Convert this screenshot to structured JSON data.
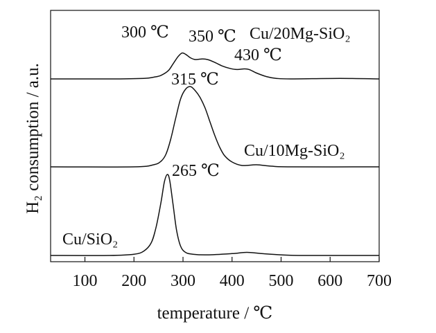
{
  "chart_data": {
    "type": "line",
    "xlabel": "temperature / ℃",
    "ylabel": "H₂ consumption / a.u.",
    "xlim": [
      30,
      700
    ],
    "xticks": [
      "100",
      "200",
      "300",
      "400",
      "500",
      "600",
      "700"
    ],
    "yaxis_ticks": false,
    "grid": false,
    "series": [
      {
        "name": "Cu/20Mg-SiO₂",
        "baseline": 3.0,
        "points": [
          [
            30,
            0
          ],
          [
            150,
            0
          ],
          [
            220,
            0.01
          ],
          [
            240,
            0.03
          ],
          [
            255,
            0.06
          ],
          [
            270,
            0.14
          ],
          [
            280,
            0.26
          ],
          [
            290,
            0.38
          ],
          [
            298,
            0.44
          ],
          [
            305,
            0.42
          ],
          [
            315,
            0.36
          ],
          [
            325,
            0.33
          ],
          [
            340,
            0.34
          ],
          [
            350,
            0.33
          ],
          [
            365,
            0.28
          ],
          [
            380,
            0.22
          ],
          [
            395,
            0.18
          ],
          [
            410,
            0.16
          ],
          [
            425,
            0.17
          ],
          [
            435,
            0.16
          ],
          [
            450,
            0.1
          ],
          [
            470,
            0.04
          ],
          [
            490,
            0.01
          ],
          [
            520,
            0
          ],
          [
            620,
            0.01
          ],
          [
            700,
            0
          ]
        ],
        "peak_labels": [
          "300 ℃",
          "350 ℃",
          "430 ℃"
        ]
      },
      {
        "name": "Cu/10Mg-SiO₂",
        "baseline": 1.5,
        "points": [
          [
            30,
            0
          ],
          [
            200,
            0
          ],
          [
            240,
            0.03
          ],
          [
            255,
            0.08
          ],
          [
            265,
            0.18
          ],
          [
            275,
            0.4
          ],
          [
            285,
            0.7
          ],
          [
            295,
            0.98
          ],
          [
            305,
            1.12
          ],
          [
            315,
            1.16
          ],
          [
            325,
            1.1
          ],
          [
            335,
            1.0
          ],
          [
            345,
            0.85
          ],
          [
            355,
            0.65
          ],
          [
            365,
            0.45
          ],
          [
            375,
            0.28
          ],
          [
            385,
            0.16
          ],
          [
            400,
            0.07
          ],
          [
            420,
            0.02
          ],
          [
            450,
            0.03
          ],
          [
            480,
            0.01
          ],
          [
            520,
            0
          ],
          [
            700,
            0
          ]
        ],
        "peak_labels": [
          "315 ℃"
        ]
      },
      {
        "name": "Cu/SiO₂",
        "baseline": 0.0,
        "points": [
          [
            30,
            0
          ],
          [
            150,
            0
          ],
          [
            200,
            0.02
          ],
          [
            220,
            0.07
          ],
          [
            235,
            0.2
          ],
          [
            245,
            0.45
          ],
          [
            255,
            0.85
          ],
          [
            262,
            1.18
          ],
          [
            268,
            1.3
          ],
          [
            273,
            1.2
          ],
          [
            280,
            0.8
          ],
          [
            287,
            0.4
          ],
          [
            295,
            0.15
          ],
          [
            305,
            0.05
          ],
          [
            320,
            0.02
          ],
          [
            350,
            0.01
          ],
          [
            400,
            0.03
          ],
          [
            430,
            0.05
          ],
          [
            460,
            0.03
          ],
          [
            500,
            0.01
          ],
          [
            550,
            0
          ],
          [
            700,
            0
          ]
        ],
        "peak_labels": [
          "265 ℃"
        ]
      }
    ]
  }
}
